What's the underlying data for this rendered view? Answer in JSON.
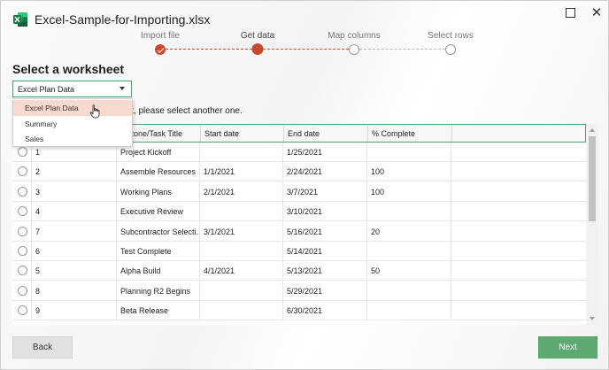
{
  "window": {
    "file_title": "Excel-Sample-for-Importing.xlsx",
    "app_icon": "excel-icon",
    "maximize_icon": "maximize-icon",
    "close_icon": "close-icon",
    "close_glyph": "✕"
  },
  "stepper": {
    "steps": [
      {
        "label": "Import file",
        "state": "done"
      },
      {
        "label": "Get data",
        "state": "current"
      },
      {
        "label": "Map columns",
        "state": "pending"
      },
      {
        "label": "Select rows",
        "state": "pending"
      }
    ],
    "accent_color": "#c84a2c"
  },
  "section_title": "Select a worksheet",
  "worksheet_dropdown": {
    "selected": "Excel Plan Data",
    "options": [
      "Excel Plan Data",
      "Summary",
      "Sales"
    ]
  },
  "hint_text": "not, please select another one.",
  "table": {
    "columns": [
      "",
      "",
      "Milestone/Task Title",
      "Start date",
      "End date",
      "% Complete",
      ""
    ],
    "header_visible_title": "lestone/Task Title",
    "rows": [
      {
        "id": "1",
        "title": "Project Kickoff",
        "start": "",
        "end": "1/25/2021",
        "complete": ""
      },
      {
        "id": "2",
        "title": "Assemble Resources",
        "start": "1/1/2021",
        "end": "2/24/2021",
        "complete": "100"
      },
      {
        "id": "3",
        "title": "Working Plans",
        "start": "2/1/2021",
        "end": "3/7/2021",
        "complete": "100"
      },
      {
        "id": "4",
        "title": "Executive Review",
        "start": "",
        "end": "3/10/2021",
        "complete": ""
      },
      {
        "id": "7",
        "title": "Subcontractor Selecti...",
        "start": "3/1/2021",
        "end": "5/16/2021",
        "complete": "20"
      },
      {
        "id": "6",
        "title": "Test Complete",
        "start": "",
        "end": "5/14/2021",
        "complete": ""
      },
      {
        "id": "5",
        "title": "Alpha Build",
        "start": "4/1/2021",
        "end": "5/13/2021",
        "complete": "50"
      },
      {
        "id": "8",
        "title": "Planning R2 Begins",
        "start": "",
        "end": "5/29/2021",
        "complete": ""
      },
      {
        "id": "9",
        "title": "Beta Release",
        "start": "",
        "end": "6/30/2021",
        "complete": ""
      }
    ]
  },
  "buttons": {
    "back": "Back",
    "next": "Next"
  },
  "colors": {
    "primary_green": "#5ea872",
    "selected_menu": "#f6d9cf"
  }
}
